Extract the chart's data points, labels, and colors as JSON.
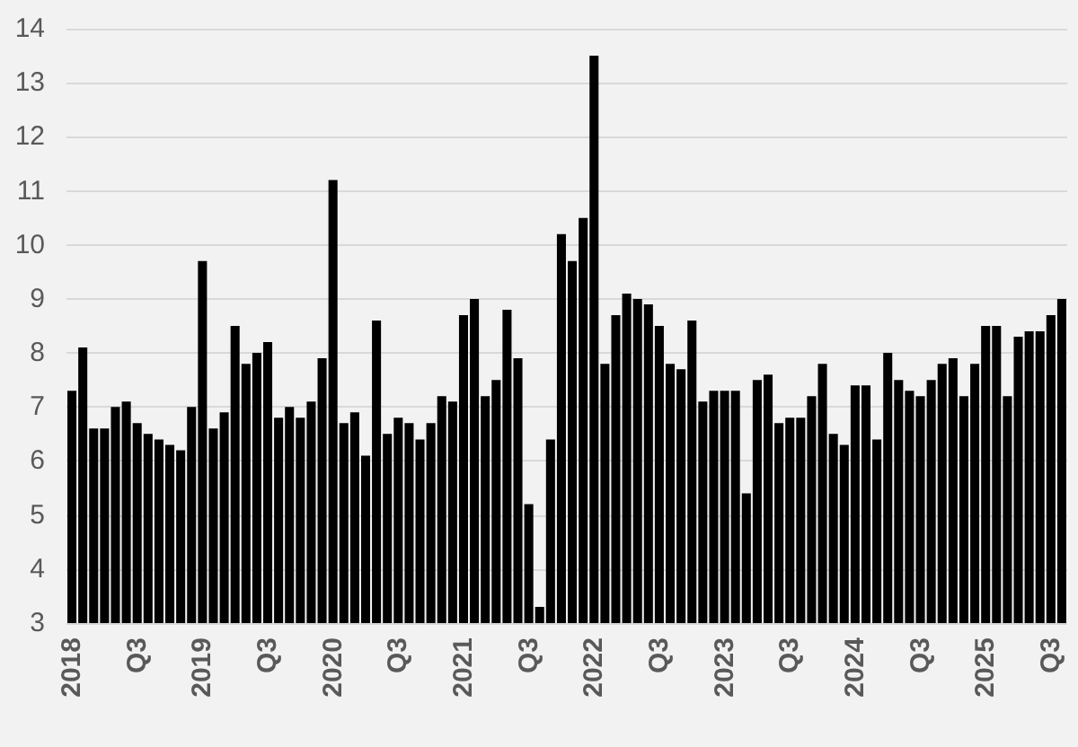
{
  "chart_data": {
    "type": "bar",
    "color": "#000000",
    "grid": "y",
    "categories": [
      "2018",
      null,
      null,
      null,
      null,
      null,
      "Q3",
      null,
      null,
      null,
      null,
      null,
      "2019",
      null,
      null,
      null,
      null,
      null,
      "Q3",
      null,
      null,
      null,
      null,
      null,
      "2020",
      null,
      null,
      null,
      null,
      null,
      "Q3",
      null,
      null,
      null,
      null,
      null,
      "2021",
      null,
      null,
      null,
      null,
      null,
      "Q3",
      null,
      null,
      null,
      null,
      null,
      "2022",
      null,
      null,
      null,
      null,
      null,
      "Q3",
      null,
      null,
      null,
      null,
      null,
      "2023",
      null,
      null,
      null,
      null,
      null,
      "Q3",
      null,
      null,
      null,
      null,
      null,
      "2024",
      null,
      null,
      null,
      null,
      null,
      "Q3",
      null,
      null,
      null,
      null,
      null,
      "2025",
      null,
      null,
      null,
      null,
      null,
      "Q3",
      null
    ],
    "values": [
      7.3,
      8.1,
      6.6,
      6.6,
      7.0,
      7.1,
      6.7,
      6.5,
      6.4,
      6.3,
      6.2,
      7.0,
      9.7,
      6.6,
      6.9,
      8.5,
      7.8,
      8.0,
      8.2,
      6.8,
      7.0,
      6.8,
      7.1,
      7.9,
      11.2,
      6.7,
      6.9,
      6.1,
      8.6,
      6.5,
      6.8,
      6.7,
      6.4,
      6.7,
      7.2,
      7.1,
      8.7,
      9.0,
      7.2,
      7.5,
      8.8,
      7.9,
      5.2,
      3.3,
      6.4,
      10.2,
      9.7,
      10.5,
      13.5,
      7.8,
      8.7,
      9.1,
      9.0,
      8.9,
      8.5,
      7.8,
      7.7,
      8.6,
      7.1,
      7.3,
      7.3,
      7.3,
      5.4,
      7.5,
      7.6,
      6.7,
      6.8,
      6.8,
      7.2,
      7.8,
      6.5,
      6.3,
      7.4,
      7.4,
      6.4,
      8.0,
      7.5,
      7.3,
      7.2,
      7.5,
      7.8,
      7.9,
      7.2,
      7.8,
      8.5,
      8.5,
      7.2,
      8.3,
      8.4,
      8.4,
      8.7,
      9.0
    ],
    "ylim": [
      3,
      14
    ],
    "yticks": [
      3,
      4,
      5,
      6,
      7,
      8,
      9,
      10,
      11,
      12,
      13,
      14
    ]
  }
}
